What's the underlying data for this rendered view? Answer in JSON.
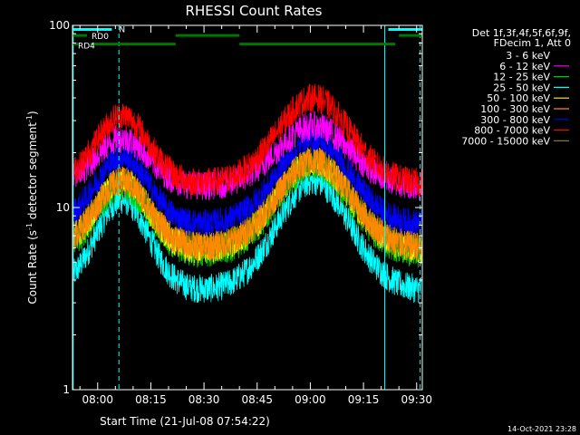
{
  "chart_data": {
    "type": "line",
    "title": "RHESSI Count Rates",
    "xlabel": "Start Time (21-Jul-08 07:54:22)",
    "ylabel_main": "Count Rate (s",
    "ylabel_sup": "-1",
    "ylabel_end": " detector segment",
    "ylabel_sup2": "-1",
    "ylabel_close": ")",
    "yscale": "log",
    "ylim": [
      1,
      100
    ],
    "xlim_minutes": [
      -1.5,
      97.2
    ],
    "x_ticks": [
      {
        "label": "08:00",
        "minutes": 5.6
      },
      {
        "label": "08:15",
        "minutes": 20.6
      },
      {
        "label": "08:30",
        "minutes": 35.6
      },
      {
        "label": "08:45",
        "minutes": 50.6
      },
      {
        "label": "09:00",
        "minutes": 65.6
      },
      {
        "label": "09:15",
        "minutes": 80.6
      },
      {
        "label": "09:30",
        "minutes": 95.6
      }
    ],
    "y_ticks": [
      {
        "label": "100",
        "value": 100
      },
      {
        "label": "10",
        "value": 10
      },
      {
        "label": "1",
        "value": 1
      }
    ],
    "legend_header": [
      "Det 1f,3f,4f,5f,6f,9f,",
      "FDecim 1, Att 0"
    ],
    "series": [
      {
        "name": "3 - 6 keV",
        "color": "#000000",
        "base": 4.8,
        "peak1": 17,
        "peak2": 22
      },
      {
        "name": "6 - 12 keV",
        "color": "#ff00ff",
        "base": 13,
        "peak1": 24,
        "peak2": 28
      },
      {
        "name": "12 - 25 keV",
        "color": "#00cc00",
        "base": 5.5,
        "peak1": 13,
        "peak2": 17
      },
      {
        "name": "25 - 50 keV",
        "color": "#00ffff",
        "base": 3.5,
        "peak1": 11,
        "peak2": 14
      },
      {
        "name": "50 - 100 keV",
        "color": "#ffff00",
        "base": 5.8,
        "peak1": 14,
        "peak2": 18
      },
      {
        "name": "100 - 300 keV",
        "color": "#ff8800",
        "base": 6,
        "peak1": 14,
        "peak2": 18
      },
      {
        "name": "300 - 800 keV",
        "color": "#0000ff",
        "base": 8,
        "peak1": 19,
        "peak2": 23
      },
      {
        "name": "800 - 7000 keV",
        "color": "#ff0000",
        "base": 13.5,
        "peak1": 32,
        "peak2": 40
      },
      {
        "name": "7000 - 15000 keV",
        "color": "#808000",
        "base": 6,
        "peak1": 14,
        "peak2": 18
      }
    ],
    "flag_bars": [
      {
        "label": "N",
        "color": "#00ffff",
        "y_value": 95,
        "segments": [
          [
            -1.5,
            9.6
          ],
          [
            87.6,
            97.2
          ]
        ]
      },
      {
        "label": "RD0",
        "color": "#007700",
        "y_value": 88,
        "segments": [
          [
            -1.5,
            2.6
          ],
          [
            27.6,
            45.6
          ],
          [
            90.6,
            97.2
          ]
        ]
      },
      {
        "label": "RD4",
        "color": "#007700",
        "y_value": 79,
        "segments": [
          [
            -1.5,
            0.1
          ],
          [
            3.6,
            27.6
          ],
          [
            45.6,
            89.6
          ]
        ]
      }
    ],
    "vertical_markers": [
      {
        "minutes": 11.6,
        "style": "dashed",
        "color": "#00ffff"
      },
      {
        "minutes": 86.6,
        "style": "solid",
        "color": "#00ffff"
      },
      {
        "minutes": 96.6,
        "style": "dashed",
        "color": "#00ffff"
      },
      {
        "minutes": -1.3,
        "style": "solid",
        "color": "#00ffff"
      }
    ]
  },
  "footer": {
    "timestamp": "14-Oct-2021 23:28"
  }
}
